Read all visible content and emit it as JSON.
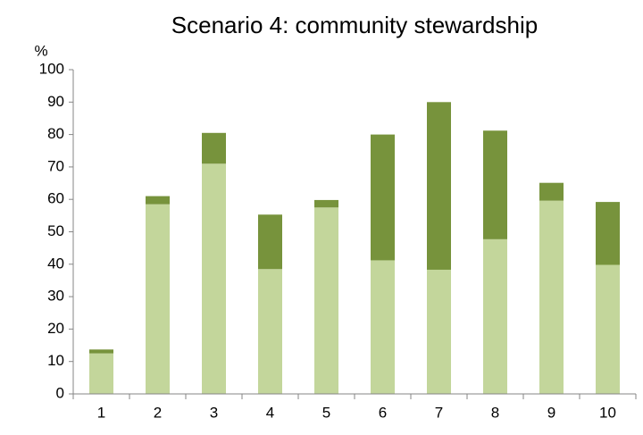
{
  "chart_data": {
    "type": "stacked_bar",
    "title": "Scenario 4: community stewardship",
    "y_label": "%",
    "categories": [
      "1",
      "2",
      "3",
      "4",
      "5",
      "6",
      "7",
      "8",
      "9",
      "10"
    ],
    "series": [
      {
        "color": "#c3d69b",
        "values": [
          12.5,
          58.5,
          71,
          38.5,
          57.5,
          41.2,
          38.3,
          47.7,
          59.6,
          39.8
        ]
      },
      {
        "color": "#77933c",
        "values": [
          1.2,
          2.5,
          9.5,
          16.8,
          2.3,
          38.8,
          51.7,
          33.5,
          5.5,
          19.4
        ]
      }
    ],
    "ylim": [
      0,
      100
    ],
    "yticks": [
      0,
      10,
      20,
      30,
      40,
      50,
      60,
      70,
      80,
      90,
      100
    ],
    "grid": false
  }
}
